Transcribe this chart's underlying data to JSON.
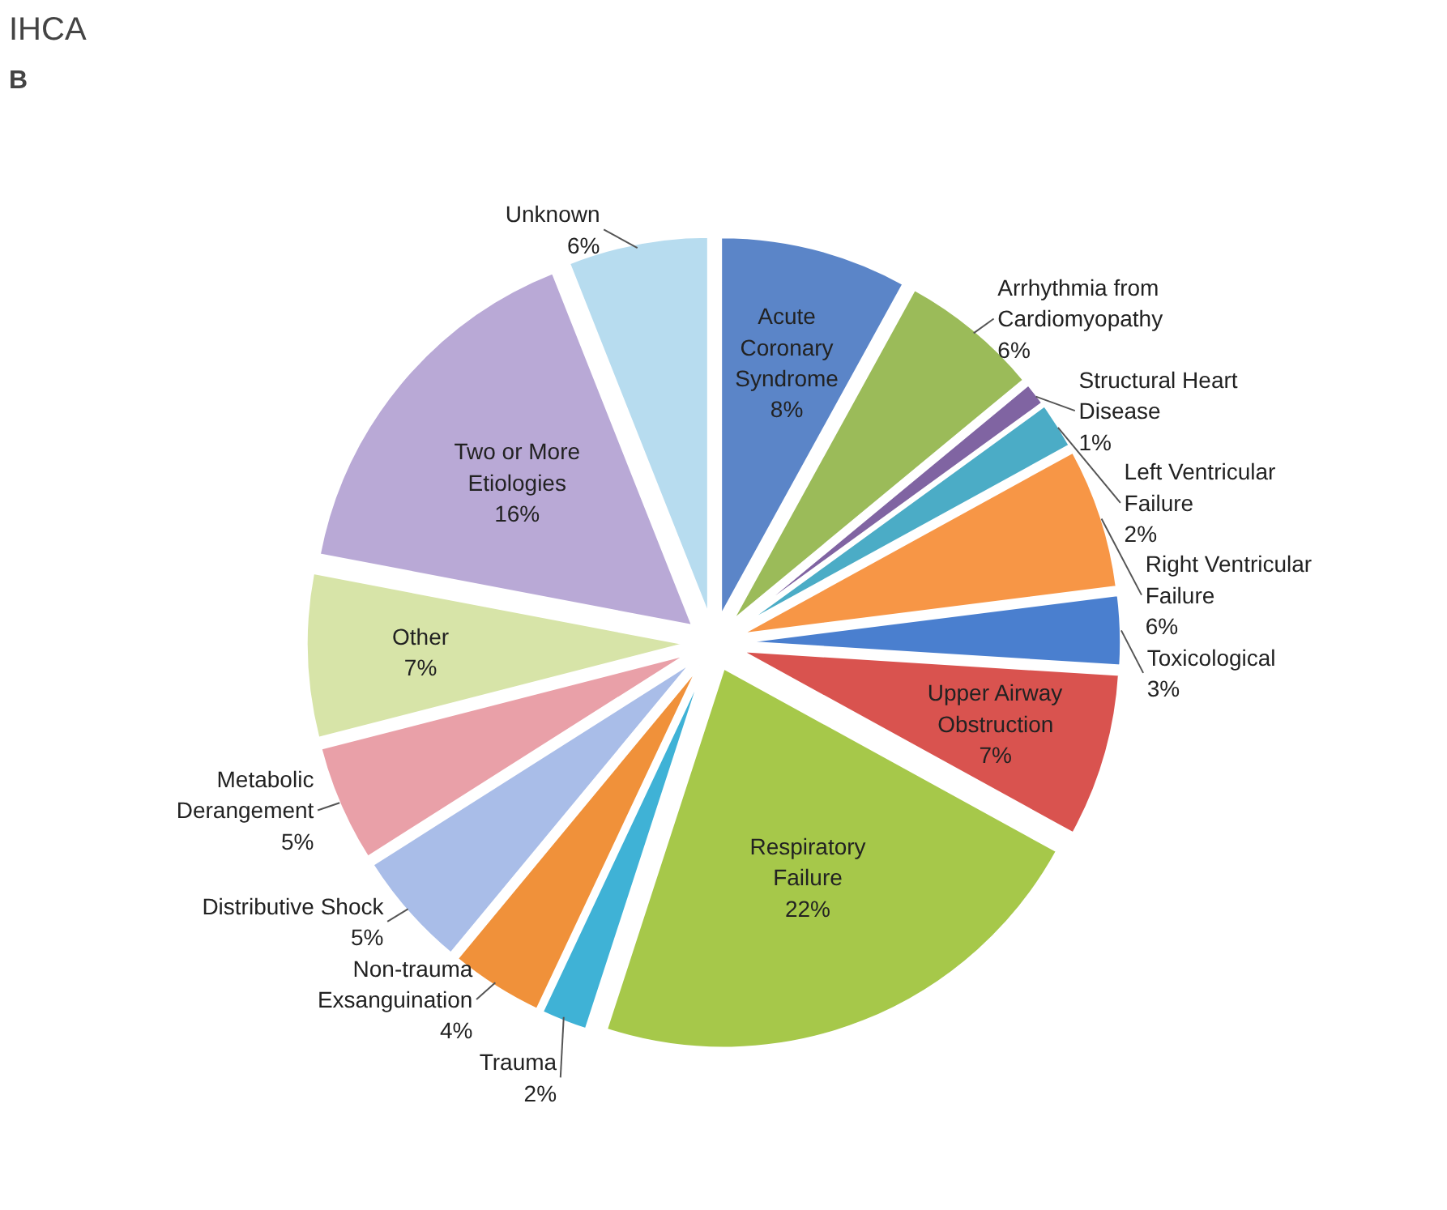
{
  "chart_data": {
    "type": "pie",
    "title": "IHCA",
    "subtitle": "B",
    "categories": [
      "Acute Coronary Syndrome",
      "Arrhythmia from Cardiomyopathy",
      "Structural Heart Disease",
      "Left Ventricular Failure",
      "Right Ventricular Failure",
      "Toxicological",
      "Upper Airway Obstruction",
      "Respiratory Failure",
      "Trauma",
      "Non-trauma Exsanguination",
      "Distributive Shock",
      "Metabolic Derangement",
      "Other",
      "Two or More Etiologies",
      "Unknown"
    ],
    "values": [
      8,
      6,
      1,
      2,
      6,
      3,
      7,
      22,
      2,
      4,
      5,
      5,
      7,
      16,
      6
    ],
    "value_labels": [
      "8%",
      "6%",
      "1%",
      "2%",
      "6%",
      "3%",
      "7%",
      "22%",
      "2%",
      "4%",
      "5%",
      "5%",
      "7%",
      "16%",
      "6%"
    ],
    "colors": [
      "#5b85c8",
      "#9bbb59",
      "#8064a2",
      "#4bacc6",
      "#f79646",
      "#4a7fcf",
      "#d9534f",
      "#a6c84a",
      "#3fb2d6",
      "#f0913a",
      "#a9bde8",
      "#e9a0a8",
      "#d7e4a8",
      "#b9a9d6",
      "#b7dcef"
    ]
  }
}
